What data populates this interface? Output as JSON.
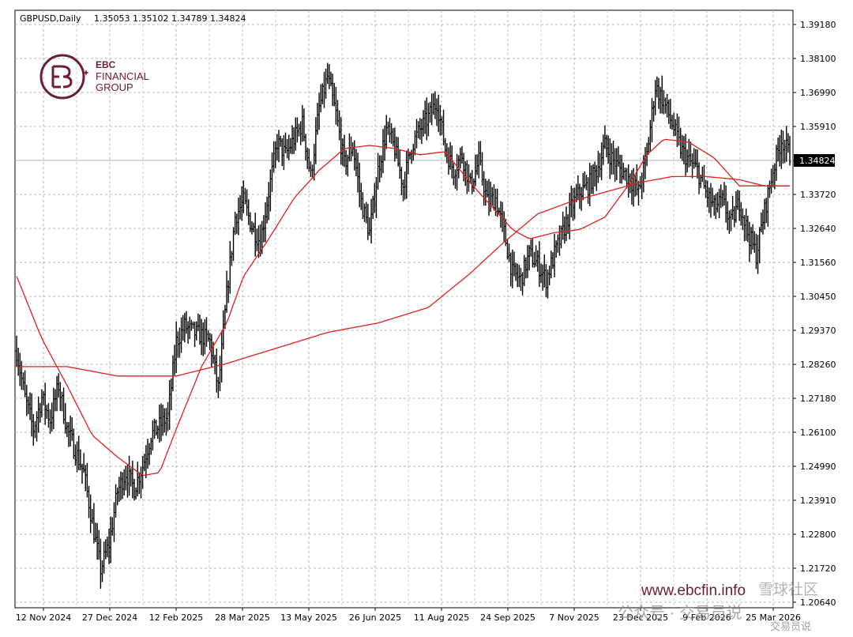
{
  "header": {
    "symbol": "GBPUSD,Daily",
    "ohlc": "1.35053 1.35102 1.34789 1.34824"
  },
  "logo": {
    "line1": "EBC",
    "line2": "FINANCIAL",
    "line3": "GROUP",
    "color": "#6a2030"
  },
  "watermark": {
    "url": "www.ebcfin.info",
    "overlay1": "公众号 · 交易员说",
    "overlay2": "雪球社区",
    "overlay3": "交易员说"
  },
  "chart_data": {
    "type": "line",
    "series_style": "ohlc-bars",
    "price_label": "1.34824",
    "ylim": [
      1.2064,
      1.3918
    ],
    "y_ticks": [
      "1.39180",
      "1.38100",
      "1.36990",
      "1.35910",
      "1.34824",
      "1.33720",
      "1.32640",
      "1.31560",
      "1.30450",
      "1.29370",
      "1.28260",
      "1.27180",
      "1.26100",
      "1.24990",
      "1.23910",
      "1.22800",
      "1.21720",
      "1.20640"
    ],
    "x_ticks": [
      "12 Nov 2024",
      "27 Dec 2024",
      "12 Feb 2025",
      "28 Mar 2025",
      "13 May 2025",
      "26 Jun 2025",
      "11 Aug 2025",
      "24 Sep 2025",
      "7 Nov 2025",
      "23 Dec 2025",
      "9 Feb 2026",
      "25 Mar 2026"
    ],
    "price_path": [
      [
        0,
        1.287
      ],
      [
        5,
        1.272
      ],
      [
        10,
        1.262
      ],
      [
        15,
        1.272
      ],
      [
        20,
        1.265
      ],
      [
        25,
        1.276
      ],
      [
        30,
        1.262
      ],
      [
        35,
        1.255
      ],
      [
        40,
        1.248
      ],
      [
        45,
        1.232
      ],
      [
        50,
        1.217
      ],
      [
        55,
        1.225
      ],
      [
        60,
        1.242
      ],
      [
        65,
        1.248
      ],
      [
        70,
        1.243
      ],
      [
        75,
        1.25
      ],
      [
        80,
        1.26
      ],
      [
        85,
        1.263
      ],
      [
        90,
        1.266
      ],
      [
        95,
        1.29
      ],
      [
        100,
        1.295
      ],
      [
        105,
        1.293
      ],
      [
        110,
        1.292
      ],
      [
        115,
        1.29
      ],
      [
        120,
        1.275
      ],
      [
        125,
        1.305
      ],
      [
        130,
        1.33
      ],
      [
        135,
        1.335
      ],
      [
        140,
        1.327
      ],
      [
        145,
        1.322
      ],
      [
        150,
        1.338
      ],
      [
        155,
        1.354
      ],
      [
        160,
        1.35
      ],
      [
        165,
        1.355
      ],
      [
        170,
        1.36
      ],
      [
        175,
        1.343
      ],
      [
        180,
        1.365
      ],
      [
        185,
        1.375
      ],
      [
        190,
        1.363
      ],
      [
        195,
        1.347
      ],
      [
        200,
        1.353
      ],
      [
        205,
        1.335
      ],
      [
        210,
        1.325
      ],
      [
        215,
        1.345
      ],
      [
        220,
        1.358
      ],
      [
        225,
        1.352
      ],
      [
        230,
        1.34
      ],
      [
        235,
        1.353
      ],
      [
        240,
        1.358
      ],
      [
        245,
        1.362
      ],
      [
        250,
        1.367
      ],
      [
        255,
        1.352
      ],
      [
        260,
        1.345
      ],
      [
        265,
        1.35
      ],
      [
        270,
        1.34
      ],
      [
        275,
        1.348
      ],
      [
        280,
        1.335
      ],
      [
        285,
        1.336
      ],
      [
        290,
        1.325
      ],
      [
        295,
        1.312
      ],
      [
        300,
        1.31
      ],
      [
        305,
        1.318
      ],
      [
        310,
        1.315
      ],
      [
        315,
        1.31
      ],
      [
        320,
        1.318
      ],
      [
        325,
        1.325
      ],
      [
        330,
        1.333
      ],
      [
        335,
        1.338
      ],
      [
        340,
        1.34
      ],
      [
        345,
        1.345
      ],
      [
        350,
        1.353
      ],
      [
        355,
        1.348
      ],
      [
        360,
        1.345
      ],
      [
        365,
        1.342
      ],
      [
        370,
        1.338
      ],
      [
        375,
        1.35
      ],
      [
        380,
        1.372
      ],
      [
        385,
        1.367
      ],
      [
        390,
        1.36
      ],
      [
        395,
        1.352
      ],
      [
        400,
        1.348
      ],
      [
        405,
        1.345
      ],
      [
        410,
        1.338
      ],
      [
        415,
        1.333
      ],
      [
        420,
        1.335
      ],
      [
        425,
        1.328
      ],
      [
        430,
        1.335
      ],
      [
        435,
        1.325
      ],
      [
        440,
        1.318
      ],
      [
        445,
        1.332
      ],
      [
        450,
        1.345
      ],
      [
        455,
        1.355
      ],
      [
        460,
        1.35
      ]
    ],
    "ma_short": [
      [
        0,
        1.311
      ],
      [
        15,
        1.291
      ],
      [
        30,
        1.276
      ],
      [
        45,
        1.26
      ],
      [
        60,
        1.253
      ],
      [
        75,
        1.247
      ],
      [
        85,
        1.248
      ],
      [
        95,
        1.262
      ],
      [
        110,
        1.282
      ],
      [
        125,
        1.296
      ],
      [
        135,
        1.311
      ],
      [
        150,
        1.323
      ],
      [
        165,
        1.336
      ],
      [
        180,
        1.345
      ],
      [
        195,
        1.352
      ],
      [
        210,
        1.353
      ],
      [
        225,
        1.352
      ],
      [
        240,
        1.35
      ],
      [
        255,
        1.351
      ],
      [
        270,
        1.341
      ],
      [
        285,
        1.332
      ],
      [
        295,
        1.326
      ],
      [
        305,
        1.323
      ],
      [
        320,
        1.325
      ],
      [
        335,
        1.326
      ],
      [
        350,
        1.33
      ],
      [
        365,
        1.341
      ],
      [
        375,
        1.35
      ],
      [
        385,
        1.355
      ],
      [
        400,
        1.354
      ],
      [
        415,
        1.349
      ],
      [
        430,
        1.34
      ],
      [
        445,
        1.34
      ],
      [
        455,
        1.34
      ]
    ],
    "ma_long": [
      [
        0,
        1.282
      ],
      [
        30,
        1.282
      ],
      [
        60,
        1.279
      ],
      [
        95,
        1.279
      ],
      [
        125,
        1.283
      ],
      [
        155,
        1.288
      ],
      [
        185,
        1.293
      ],
      [
        215,
        1.296
      ],
      [
        245,
        1.301
      ],
      [
        270,
        1.312
      ],
      [
        290,
        1.322
      ],
      [
        310,
        1.331
      ],
      [
        330,
        1.335
      ],
      [
        350,
        1.338
      ],
      [
        370,
        1.341
      ],
      [
        390,
        1.343
      ],
      [
        410,
        1.343
      ],
      [
        430,
        1.342
      ],
      [
        445,
        1.34
      ],
      [
        455,
        1.34
      ]
    ]
  }
}
